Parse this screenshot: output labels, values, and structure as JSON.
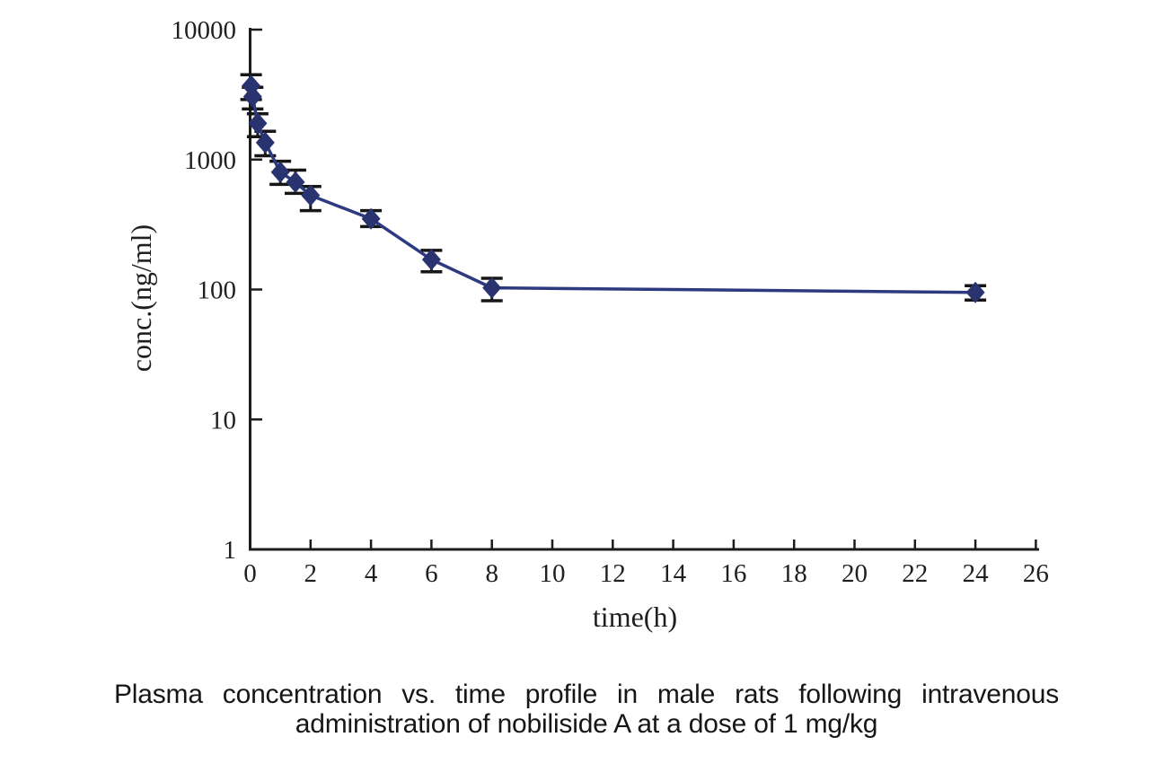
{
  "figure": {
    "caption_line1": "Plasma concentration vs. time profile in male rats following intravenous",
    "caption_line2": "administration of nobiliside A at a dose of 1 mg/kg"
  },
  "chart_data": {
    "type": "line",
    "title": "",
    "xlabel": "time(h)",
    "ylabel": "conc.(ng/ml)",
    "y_scale": "log",
    "xlim": [
      0,
      26
    ],
    "ylim": [
      1,
      10000
    ],
    "x_ticks": [
      0,
      2,
      4,
      6,
      8,
      10,
      12,
      14,
      16,
      18,
      20,
      22,
      24,
      26
    ],
    "y_ticks": [
      1,
      10,
      100,
      1000,
      10000
    ],
    "grid": false,
    "legend": "none",
    "series": [
      {
        "marker": "diamond",
        "points": [
          {
            "t": 0.033,
            "conc": 3700,
            "upper": 4500,
            "lower": 2900
          },
          {
            "t": 0.083,
            "conc": 3050,
            "upper": 3600,
            "lower": 2450
          },
          {
            "t": 0.25,
            "conc": 1900,
            "upper": 2250,
            "lower": 1500
          },
          {
            "t": 0.5,
            "conc": 1350,
            "upper": 1650,
            "lower": 1070
          },
          {
            "t": 1,
            "conc": 800,
            "upper": 970,
            "lower": 645
          },
          {
            "t": 1.5,
            "conc": 670,
            "upper": 830,
            "lower": 550
          },
          {
            "t": 2,
            "conc": 530,
            "upper": 620,
            "lower": 405
          },
          {
            "t": 4,
            "conc": 350,
            "upper": 405,
            "lower": 305
          },
          {
            "t": 6,
            "conc": 170,
            "upper": 200,
            "lower": 137
          },
          {
            "t": 8,
            "conc": 103,
            "upper": 122,
            "lower": 82
          },
          {
            "t": 24,
            "conc": 95,
            "upper": 107,
            "lower": 83
          }
        ]
      }
    ],
    "colors": {
      "line": "#2e3a80",
      "marker": "#283370",
      "error_bar": "#161616",
      "axis": "#1c1c1c",
      "text": "#1f1f1f"
    }
  }
}
